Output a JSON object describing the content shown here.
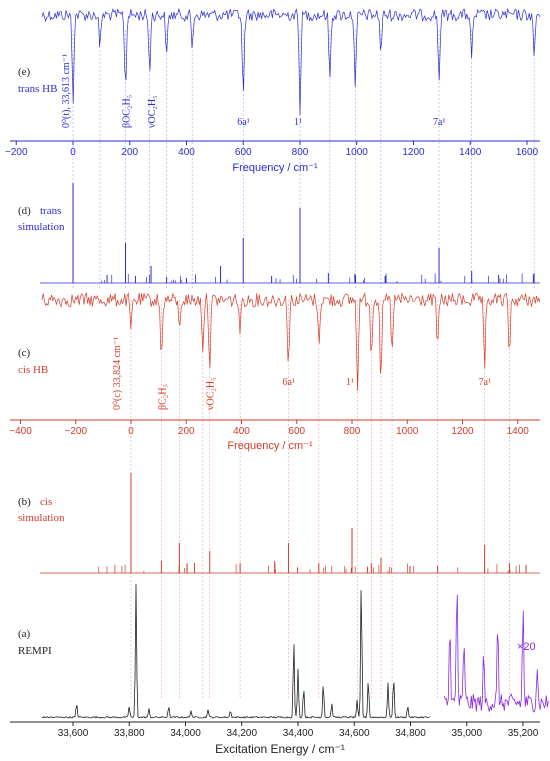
{
  "figure": {
    "panels": {
      "e": {
        "letter": "(e)",
        "label": "trans HB",
        "color": "#2b2bd6"
      },
      "d": {
        "letter": "(d)",
        "label_line1": "trans",
        "label_line2": "simulation",
        "color": "#2b2bd6"
      },
      "c": {
        "letter": "(c)",
        "label": "cis HB",
        "color": "#d23a2a"
      },
      "b": {
        "letter": "(b)",
        "label_line1": "cis",
        "label_line2": "simulation",
        "color": "#d23a2a"
      },
      "a": {
        "letter": "(a)",
        "label": "REMPI",
        "color": "#222222"
      }
    },
    "scale_note": "×20",
    "scale_note_color": "#8a2be2"
  },
  "chart_data": [
    {
      "panel": "e",
      "type": "line",
      "description_color": "#2b2bd6",
      "xlabel": "Frequency / cm⁻¹",
      "xlim": [
        -200,
        1680
      ],
      "x_ticks": [
        -200,
        0,
        200,
        400,
        600,
        800,
        1000,
        1200,
        1400,
        1600
      ],
      "x_tick_labels": [
        "−200",
        "0",
        "200",
        "400",
        "600",
        "800",
        "1000",
        "1200",
        "1400",
        "1600"
      ],
      "dips": [
        {
          "x": 0,
          "depth": 0.9
        },
        {
          "x": 95,
          "depth": 0.35
        },
        {
          "x": 185,
          "depth": 0.8
        },
        {
          "x": 270,
          "depth": 0.6
        },
        {
          "x": 330,
          "depth": 0.45
        },
        {
          "x": 420,
          "depth": 0.35
        },
        {
          "x": 600,
          "depth": 0.9
        },
        {
          "x": 800,
          "depth": 1.0
        },
        {
          "x": 905,
          "depth": 0.7
        },
        {
          "x": 995,
          "depth": 0.8
        },
        {
          "x": 1085,
          "depth": 0.4
        },
        {
          "x": 1290,
          "depth": 0.7
        },
        {
          "x": 1405,
          "depth": 0.5
        },
        {
          "x": 1625,
          "depth": 0.45
        }
      ],
      "annotations": [
        {
          "text": "0⁰(t), 33,613 cm⁻¹",
          "x": 0
        },
        {
          "text": "βOC₂H₅",
          "x": 185
        },
        {
          "text": "νOC₂H₅",
          "x": 275
        },
        {
          "text": "6a¹",
          "x": 600
        },
        {
          "text": "1¹",
          "x": 800
        },
        {
          "text": "7a¹",
          "x": 1290
        }
      ]
    },
    {
      "panel": "d",
      "type": "bar",
      "xlim": [
        -200,
        1680
      ],
      "sticks": [
        {
          "x": 0,
          "y": 1.0
        },
        {
          "x": 120,
          "y": 0.08
        },
        {
          "x": 185,
          "y": 0.4
        },
        {
          "x": 220,
          "y": 0.07
        },
        {
          "x": 275,
          "y": 0.17
        },
        {
          "x": 330,
          "y": 0.06
        },
        {
          "x": 400,
          "y": 0.05
        },
        {
          "x": 520,
          "y": 0.17
        },
        {
          "x": 600,
          "y": 0.45
        },
        {
          "x": 700,
          "y": 0.07
        },
        {
          "x": 800,
          "y": 0.75
        },
        {
          "x": 900,
          "y": 0.1
        },
        {
          "x": 995,
          "y": 0.07
        },
        {
          "x": 1100,
          "y": 0.07
        },
        {
          "x": 1290,
          "y": 0.35
        },
        {
          "x": 1405,
          "y": 0.12
        },
        {
          "x": 1500,
          "y": 0.08
        },
        {
          "x": 1625,
          "y": 0.1
        }
      ]
    },
    {
      "panel": "c",
      "type": "line",
      "xlabel": "Frequency / cm⁻¹",
      "xlim": [
        -400,
        1500
      ],
      "x_ticks": [
        -400,
        -200,
        0,
        200,
        400,
        600,
        800,
        1000,
        1200,
        1400
      ],
      "x_tick_labels": [
        "−400",
        "−200",
        "0",
        "200",
        "400",
        "600",
        "800",
        "1000",
        "1200",
        "1400"
      ],
      "dips": [
        {
          "x": 0,
          "depth": 0.35
        },
        {
          "x": 110,
          "depth": 0.7
        },
        {
          "x": 175,
          "depth": 0.35
        },
        {
          "x": 260,
          "depth": 0.55
        },
        {
          "x": 285,
          "depth": 0.75
        },
        {
          "x": 395,
          "depth": 0.35
        },
        {
          "x": 570,
          "depth": 0.75
        },
        {
          "x": 680,
          "depth": 0.5
        },
        {
          "x": 820,
          "depth": 1.0
        },
        {
          "x": 870,
          "depth": 0.6
        },
        {
          "x": 905,
          "depth": 0.95
        },
        {
          "x": 945,
          "depth": 0.6
        },
        {
          "x": 1110,
          "depth": 0.55
        },
        {
          "x": 1280,
          "depth": 0.85
        },
        {
          "x": 1370,
          "depth": 0.6
        }
      ],
      "annotations": [
        {
          "text": "0⁰(c) 33,824 cm⁻¹",
          "x": -25
        },
        {
          "text": "βC₂H₅",
          "x": 110
        },
        {
          "text": "νOC₂H₅",
          "x": 285
        },
        {
          "text": "6a¹",
          "x": 570
        },
        {
          "text": "1¹",
          "x": 800
        },
        {
          "text": "7a¹",
          "x": 1280
        }
      ]
    },
    {
      "panel": "b",
      "type": "bar",
      "xlim": [
        -400,
        1500
      ],
      "sticks": [
        {
          "x": 0,
          "y": 1.0
        },
        {
          "x": 110,
          "y": 0.12
        },
        {
          "x": 175,
          "y": 0.3
        },
        {
          "x": 230,
          "y": 0.1
        },
        {
          "x": 285,
          "y": 0.22
        },
        {
          "x": 395,
          "y": 0.1
        },
        {
          "x": 520,
          "y": 0.12
        },
        {
          "x": 570,
          "y": 0.3
        },
        {
          "x": 680,
          "y": 0.1
        },
        {
          "x": 800,
          "y": 0.45
        },
        {
          "x": 870,
          "y": 0.1
        },
        {
          "x": 905,
          "y": 0.15
        },
        {
          "x": 1010,
          "y": 0.07
        },
        {
          "x": 1110,
          "y": 0.07
        },
        {
          "x": 1280,
          "y": 0.28
        },
        {
          "x": 1370,
          "y": 0.1
        },
        {
          "x": 1430,
          "y": 0.08
        }
      ]
    },
    {
      "panel": "a",
      "type": "line",
      "xlabel": "Excitation Energy / cm⁻¹",
      "xlim": [
        33480,
        35300
      ],
      "x_ticks": [
        33600,
        33800,
        34000,
        34200,
        34400,
        34600,
        34800,
        35000,
        35200
      ],
      "x_tick_labels": [
        "33,600",
        "33,800",
        "34,000",
        "34,200",
        "34,400",
        "34,600",
        "34,800",
        "35,000",
        "35,200"
      ],
      "peaks": [
        {
          "x": 33613,
          "y": 0.1
        },
        {
          "x": 33800,
          "y": 0.08
        },
        {
          "x": 33824,
          "y": 0.95
        },
        {
          "x": 33870,
          "y": 0.06
        },
        {
          "x": 33940,
          "y": 0.08
        },
        {
          "x": 34020,
          "y": 0.05
        },
        {
          "x": 34080,
          "y": 0.06
        },
        {
          "x": 34160,
          "y": 0.05
        },
        {
          "x": 34385,
          "y": 0.55
        },
        {
          "x": 34400,
          "y": 0.35
        },
        {
          "x": 34420,
          "y": 0.22
        },
        {
          "x": 34490,
          "y": 0.25
        },
        {
          "x": 34520,
          "y": 0.1
        },
        {
          "x": 34610,
          "y": 0.12
        },
        {
          "x": 34625,
          "y": 1.0
        },
        {
          "x": 34650,
          "y": 0.28
        },
        {
          "x": 34720,
          "y": 0.25
        },
        {
          "x": 34740,
          "y": 0.3
        },
        {
          "x": 34790,
          "y": 0.08
        },
        {
          "x": 34880,
          "y": 0.06
        }
      ],
      "x20_segment": {
        "x_start": 34920,
        "x_end": 35290,
        "peaks": [
          {
            "x": 34940,
            "y": 0.65
          },
          {
            "x": 34965,
            "y": 0.95
          },
          {
            "x": 34990,
            "y": 0.5
          },
          {
            "x": 35060,
            "y": 0.35
          },
          {
            "x": 35110,
            "y": 0.6
          },
          {
            "x": 35200,
            "y": 0.75
          },
          {
            "x": 35250,
            "y": 0.3
          }
        ]
      }
    }
  ]
}
